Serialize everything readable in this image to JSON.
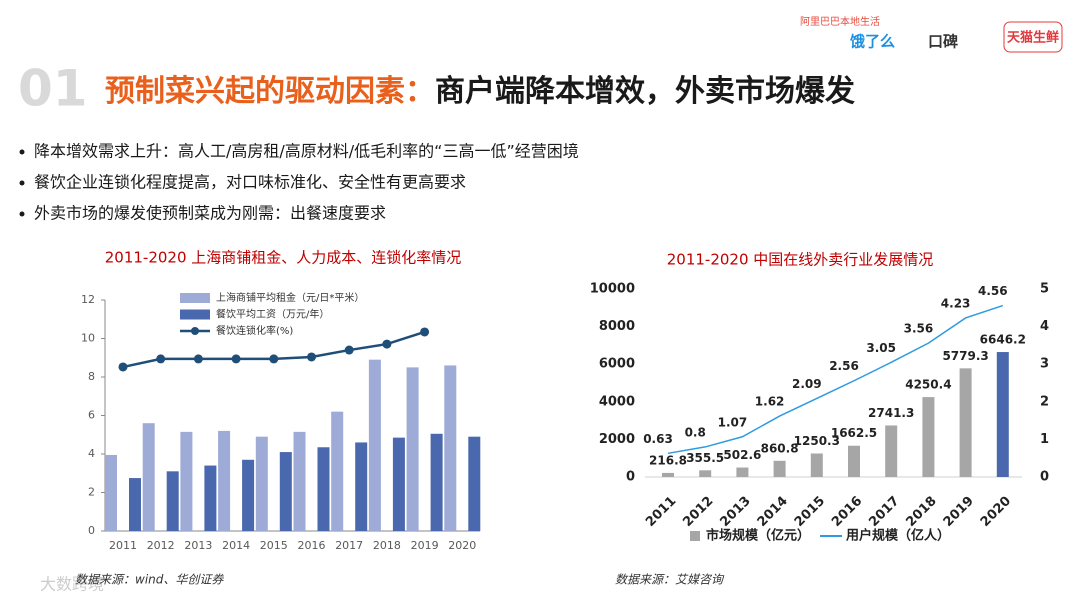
{
  "header": {
    "number": "01",
    "title_highlight": "预制菜兴起的驱动因素：",
    "title_rest": "商户端降本增效，外卖市场爆发",
    "brand_tagline": "阿里巴巴本地生活",
    "brand_1": "饿了么",
    "brand_2": "口碑",
    "brand_3": "天猫生鲜"
  },
  "bullets": [
    "降本增效需求上升：高人工/高房租/高原材料/低毛利率的“三高一低”经营困境",
    "餐饮企业连锁化程度提高，对口味标准化、安全性有更高要求",
    "外卖市场的爆发使预制菜成为刚需：出餐速度要求"
  ],
  "watermark": "大数跨境",
  "chart_data": [
    {
      "type": "bar_line",
      "title": "2011-2020 上海商铺租金、人力成本、连锁化率情况",
      "categories": [
        "2011",
        "2012",
        "2013",
        "2014",
        "2015",
        "2016",
        "2017",
        "2018",
        "2019",
        "2020"
      ],
      "series": [
        {
          "name": "上海商铺平均租金（元/日*平米）",
          "type": "bar",
          "color": "#9dabd6",
          "values": [
            3.95,
            5.6,
            5.15,
            5.2,
            4.9,
            5.15,
            6.2,
            8.9,
            8.5,
            8.6
          ]
        },
        {
          "name": "餐饮平均工资（万元/年）",
          "type": "bar",
          "color": "#4a68ad",
          "values": [
            2.75,
            3.1,
            3.4,
            3.7,
            4.1,
            4.35,
            4.6,
            4.85,
            5.05,
            4.9
          ]
        },
        {
          "name": "餐饮连锁化率(%)",
          "type": "line",
          "color": "#1f4e79",
          "values": [
            8.52,
            8.94,
            8.94,
            8.94,
            8.94,
            9.04,
            9.4,
            9.71,
            10.34,
            null
          ]
        }
      ],
      "ylim": [
        0,
        12
      ],
      "yticks": [
        0,
        2,
        4,
        6,
        8,
        10,
        12
      ],
      "source": "数据来源：wind、华创证券"
    },
    {
      "type": "bar_line",
      "title": "2011-2020 中国在线外卖行业发展情况",
      "categories": [
        "2011",
        "2012",
        "2013",
        "2014",
        "2015",
        "2016",
        "2017",
        "2018",
        "2019",
        "2020"
      ],
      "series": [
        {
          "name": "市场规模（亿元）",
          "type": "bar",
          "color": "#a6a6a6",
          "colors": [
            "#a6a6a6",
            "#a6a6a6",
            "#a6a6a6",
            "#a6a6a6",
            "#a6a6a6",
            "#a6a6a6",
            "#a6a6a6",
            "#a6a6a6",
            "#a6a6a6",
            "#4a68ad"
          ],
          "values": [
            216.8,
            355.5,
            502.6,
            860.8,
            1250.3,
            1662.5,
            2741.3,
            4250.4,
            5779.3,
            6646.2
          ]
        },
        {
          "name": "用户规模（亿人）",
          "type": "line",
          "axis": "y2",
          "color": "#2e9be0",
          "values": [
            0.63,
            0.8,
            1.07,
            1.62,
            2.09,
            2.56,
            3.05,
            3.56,
            4.23,
            4.56
          ]
        }
      ],
      "ylim": [
        0,
        10000
      ],
      "yticks": [
        0,
        2000,
        4000,
        6000,
        8000,
        10000
      ],
      "y2lim": [
        0,
        5
      ],
      "y2ticks": [
        0,
        1,
        2,
        3,
        4,
        5
      ],
      "source": "数据来源：艾媒咨询"
    }
  ]
}
